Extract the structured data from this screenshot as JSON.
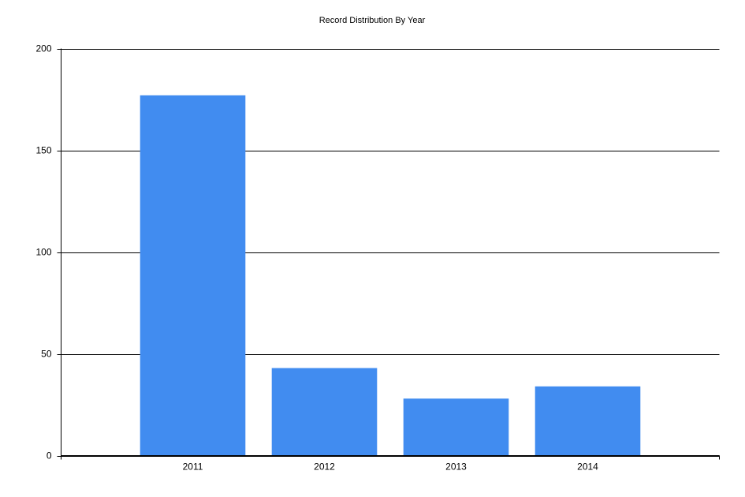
{
  "chart_data": {
    "type": "bar",
    "title": "Record Distribution By Year",
    "categories": [
      "2011",
      "2012",
      "2013",
      "2014"
    ],
    "values": [
      177,
      43,
      28,
      34
    ],
    "color": "#418cf0",
    "ylim": [
      0,
      200
    ],
    "yticks": [
      0,
      50,
      100,
      150,
      200
    ],
    "grid": true
  }
}
